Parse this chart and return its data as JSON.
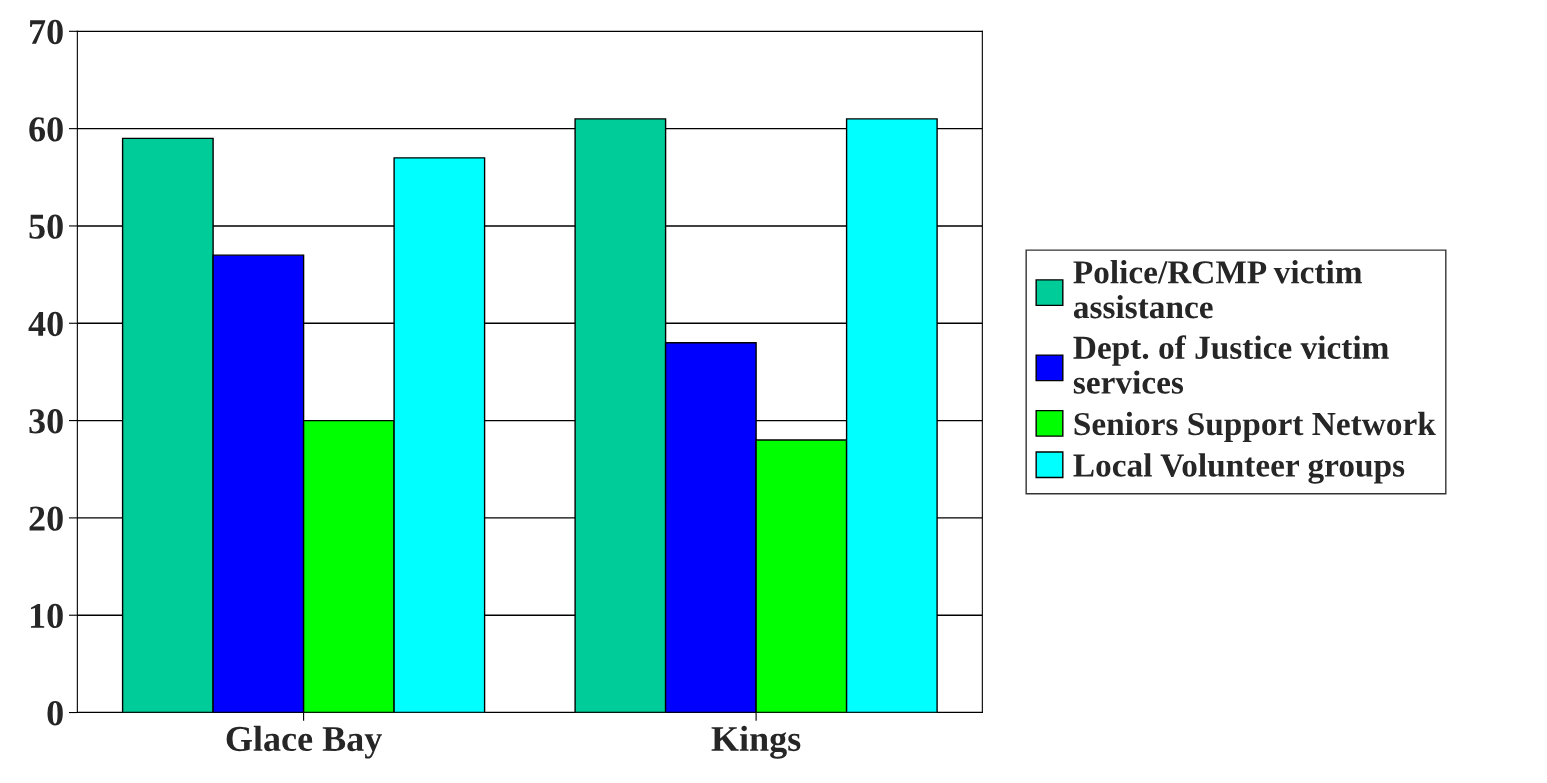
{
  "chart_data": {
    "type": "bar",
    "categories": [
      "Glace Bay",
      "Kings"
    ],
    "series": [
      {
        "name": "Police/RCMP victim assistance",
        "color": "#00cc99",
        "values": [
          59,
          61
        ]
      },
      {
        "name": "Dept. of Justice victim services",
        "color": "#0000ff",
        "values": [
          47,
          38
        ]
      },
      {
        "name": "Seniors Support Network",
        "color": "#00ff00",
        "values": [
          30,
          28
        ]
      },
      {
        "name": "Local Volunteer groups",
        "color": "#00ffff",
        "values": [
          57,
          61
        ]
      }
    ],
    "ylim": [
      0,
      70
    ],
    "yticks": [
      0,
      10,
      20,
      30,
      40,
      50,
      60,
      70
    ],
    "grid": "y",
    "legend": "right"
  }
}
